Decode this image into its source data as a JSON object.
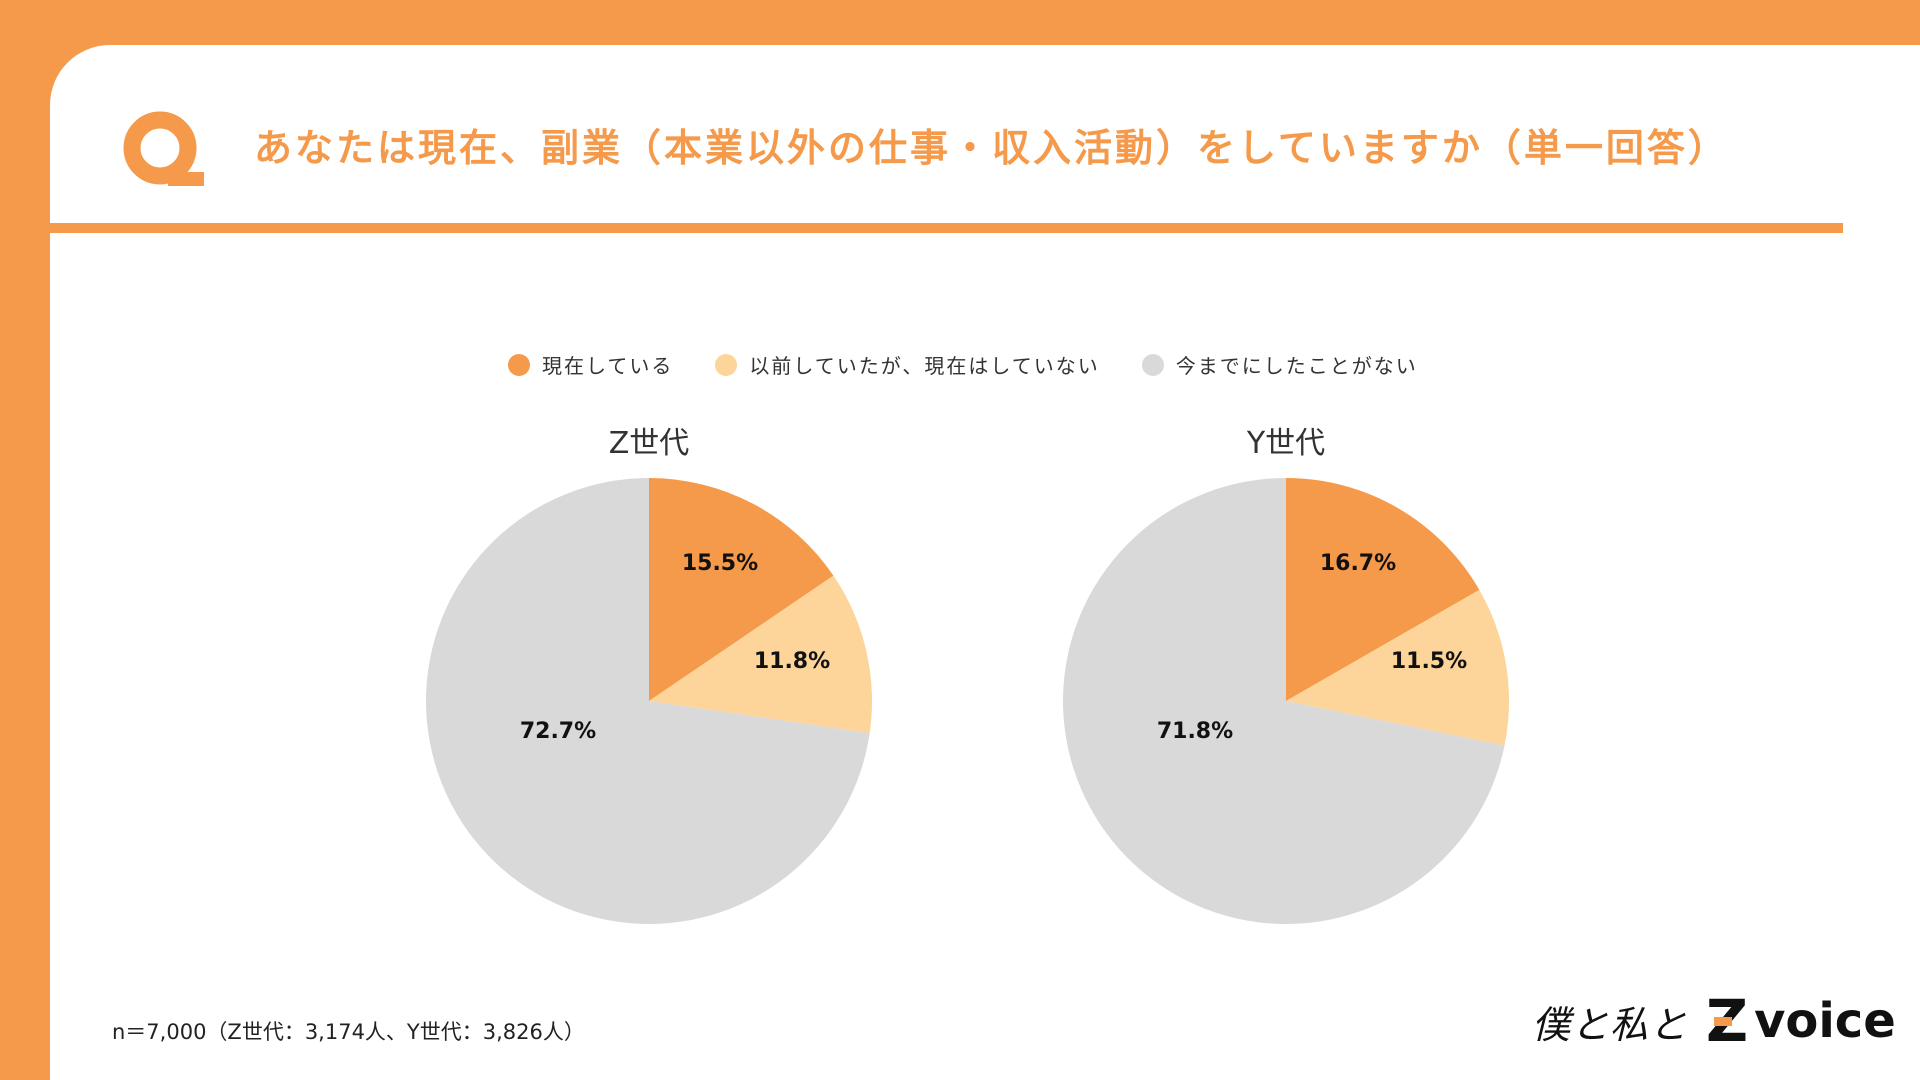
{
  "header": {
    "title": "あなたは現在、副業（本業以外の仕事・収入活動）をしていますか（単一回答）"
  },
  "colors": {
    "brand_orange": "#F5994A",
    "doing_now": "#F5994A",
    "did_before": "#FDD49A",
    "never": "#D9D9D9"
  },
  "legend": [
    {
      "label": "現在している",
      "color": "#F5994A"
    },
    {
      "label": "以前していたが、現在はしていない",
      "color": "#FDD49A"
    },
    {
      "label": "今までにしたことがない",
      "color": "#D9D9D9"
    }
  ],
  "chart_data": [
    {
      "type": "pie",
      "title": "Z世代",
      "categories": [
        "現在している",
        "以前していたが、現在はしていない",
        "今までにしたことがない"
      ],
      "values": [
        15.5,
        11.8,
        72.7
      ],
      "labels": [
        "15.5%",
        "11.8%",
        "72.7%"
      ],
      "colors": [
        "#F5994A",
        "#FDD49A",
        "#D9D9D9"
      ]
    },
    {
      "type": "pie",
      "title": "Y世代",
      "categories": [
        "現在している",
        "以前していたが、現在はしていない",
        "今までにしたことがない"
      ],
      "values": [
        16.7,
        11.5,
        71.8
      ],
      "labels": [
        "16.7%",
        "11.5%",
        "71.8%"
      ],
      "colors": [
        "#F5994A",
        "#FDD49A",
        "#D9D9D9"
      ]
    }
  ],
  "footnote": "n＝7,000（Z世代：3,174人、Y世代：3,826人）",
  "brand": {
    "script": "僕と私と",
    "z": "Z",
    "voice": "voice"
  }
}
